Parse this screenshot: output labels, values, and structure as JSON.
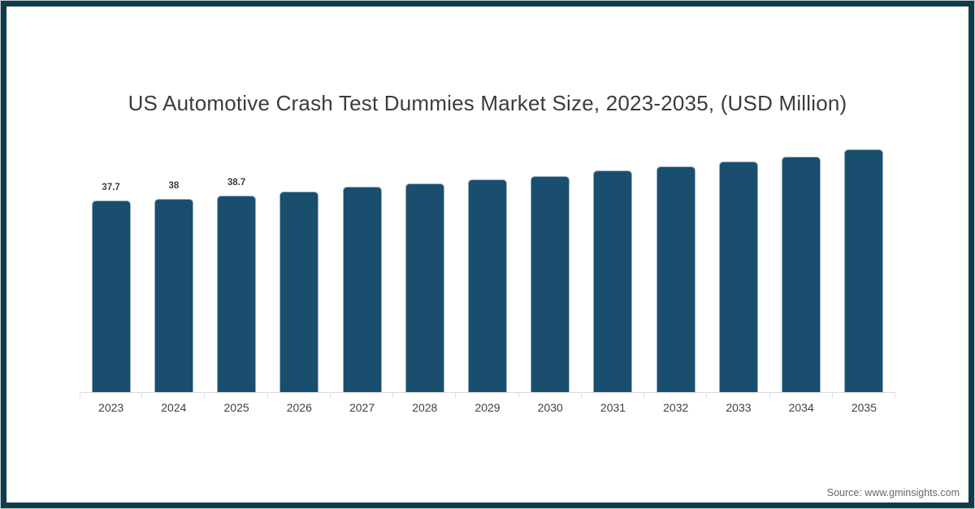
{
  "page": {
    "source": "Source: www.gminsights.com"
  },
  "colors": {
    "bar_fill": "#1a4e6e",
    "frame_border": "#0e3d4e",
    "axis_line": "#d9d9d9"
  },
  "chart_data": {
    "type": "bar",
    "title": "US Automotive Crash Test Dummies Market Size, 2023-2035, (USD Million)",
    "categories": [
      "2023",
      "2024",
      "2025",
      "2026",
      "2027",
      "2028",
      "2029",
      "2030",
      "2031",
      "2032",
      "2033",
      "2034",
      "2035"
    ],
    "values": [
      37.7,
      38,
      38.7,
      39.5,
      40.4,
      41.1,
      41.8,
      42.5,
      43.6,
      44.4,
      45.4,
      46.3,
      47.8
    ],
    "data_labels": [
      "37.7",
      "38",
      "38.7",
      "",
      "",
      "",
      "",
      "",
      "",
      "",
      "",
      "",
      ""
    ],
    "xlabel": "",
    "ylabel": "",
    "ylim": [
      0,
      50
    ],
    "baseline": 0,
    "grid": false,
    "legend": false,
    "y_axis_visible": false
  }
}
